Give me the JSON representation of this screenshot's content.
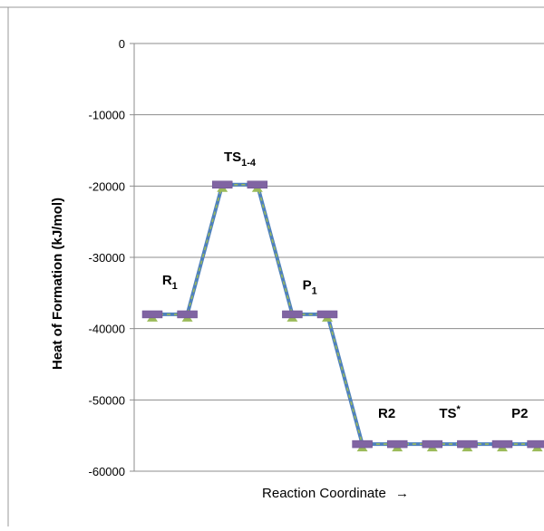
{
  "chart_data": {
    "type": "line",
    "title": "",
    "xlabel": "Reaction Coordinate",
    "xlabel_arrow": "→",
    "ylabel": "Heat of Formation (kJ/mol)",
    "ylim": [
      -60000,
      0
    ],
    "yticks": [
      0,
      -10000,
      -20000,
      -30000,
      -40000,
      -50000,
      -60000
    ],
    "ytick_labels": [
      "0",
      "-10000",
      "-20000",
      "-30000",
      "-40000",
      "-50000",
      "-60000"
    ],
    "grid": true,
    "legend": "none",
    "x": [
      1,
      2,
      3,
      4,
      5,
      6,
      7,
      8,
      9,
      10,
      11,
      12
    ],
    "series": [
      {
        "values": [
          -38000,
          -38000,
          -19800,
          -19800,
          -38000,
          -38000,
          -56200,
          -56200,
          -56200,
          -56200,
          -56200,
          -56200
        ],
        "line_color": "#4f81bd",
        "dash_color": "#9bbb59",
        "marker_color": "#8064a2"
      }
    ],
    "annotations": [
      {
        "text": "R",
        "sub": "1",
        "sup": "",
        "x": 1.5,
        "y": -33800
      },
      {
        "text": "TS",
        "sub": "1-4",
        "sup": "",
        "x": 3.5,
        "y": -16500
      },
      {
        "text": "P",
        "sub": "1",
        "sup": "",
        "x": 5.5,
        "y": -34500
      },
      {
        "text": "R2",
        "sub": "",
        "sup": "",
        "x": 7.7,
        "y": -52500
      },
      {
        "text": "TS",
        "sub": "",
        "sup": "*",
        "x": 9.5,
        "y": -52500
      },
      {
        "text": "P2",
        "sub": "",
        "sup": "",
        "x": 11.5,
        "y": -52500
      }
    ]
  }
}
